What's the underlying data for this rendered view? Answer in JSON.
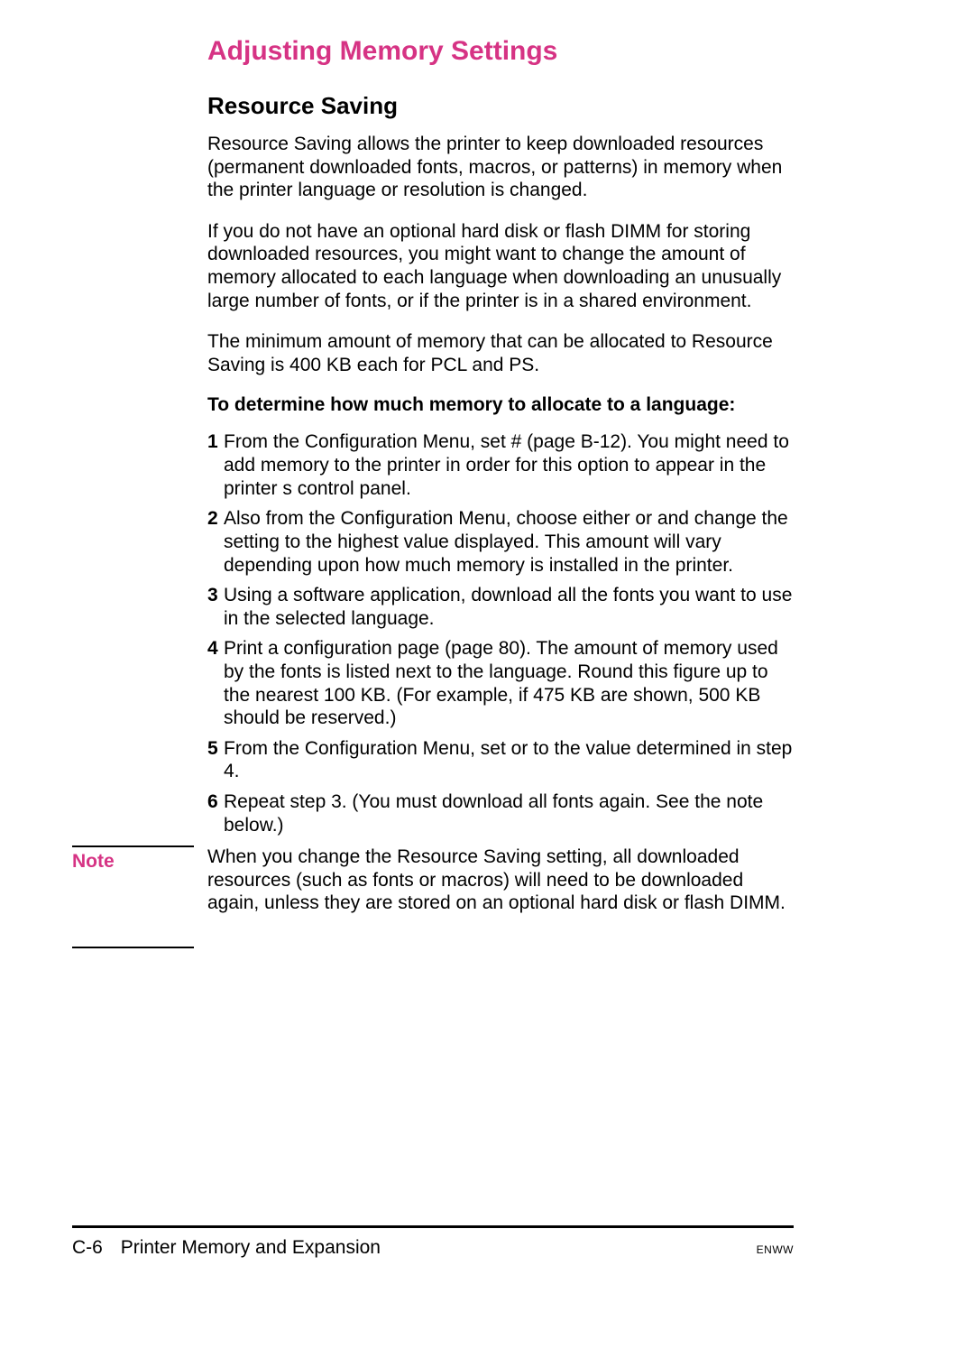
{
  "heading1": "Adjusting Memory Settings",
  "heading2": "Resource Saving",
  "para1": "Resource Saving allows the printer to keep downloaded resources (permanent downloaded fonts, macros, or patterns) in memory when the printer language or resolution is changed.",
  "para2": "If you do not have an optional hard disk or flash DIMM for storing downloaded resources, you might want to change the amount of memory allocated to each language when downloading an unusually large number of fonts, or if the printer is in a shared environment.",
  "para3": "The minimum amount of memory that can be allocated to Resource Saving is 400 KB each for PCL and PS.",
  "heading3": "To determine how much memory to allocate to a language:",
  "steps": [
    {
      "num": "1",
      "text": "From the Configuration Menu, set               #\n(page  B-12). You might need to add memory to the printer in order for this option to appear in the printer s control panel."
    },
    {
      "num": "2",
      "text": "Also from the Configuration Menu, choose either                          or                    and change the setting to the highest value displayed. This amount will vary depending upon how much memory is installed in the printer."
    },
    {
      "num": "3",
      "text": "Using a software application, download all the fonts you want to use in the selected language."
    },
    {
      "num": "4",
      "text": "Print a configuration page (page 80). The amount of memory used by the fonts is listed next to the language. Round this figure up to the nearest 100 KB. (For example, if 475 KB are shown, 500 KB should be reserved.)"
    },
    {
      "num": "5",
      "text": "From the Configuration Menu, set                           or                    to the value determined in step 4."
    },
    {
      "num": "6",
      "text": "Repeat step 3. (You must download all fonts again. See the note below.)"
    }
  ],
  "note": {
    "label": "Note",
    "text": "When you change the Resource Saving setting, all downloaded resources (such as fonts or macros) will need to be downloaded again, unless they are stored on an optional hard disk or flash DIMM."
  },
  "footer": {
    "page": "C-6",
    "title": "Printer Memory and Expansion",
    "right": "ENWW"
  },
  "colors": {
    "accent": "#d63384",
    "text": "#000000",
    "background": "#ffffff"
  }
}
